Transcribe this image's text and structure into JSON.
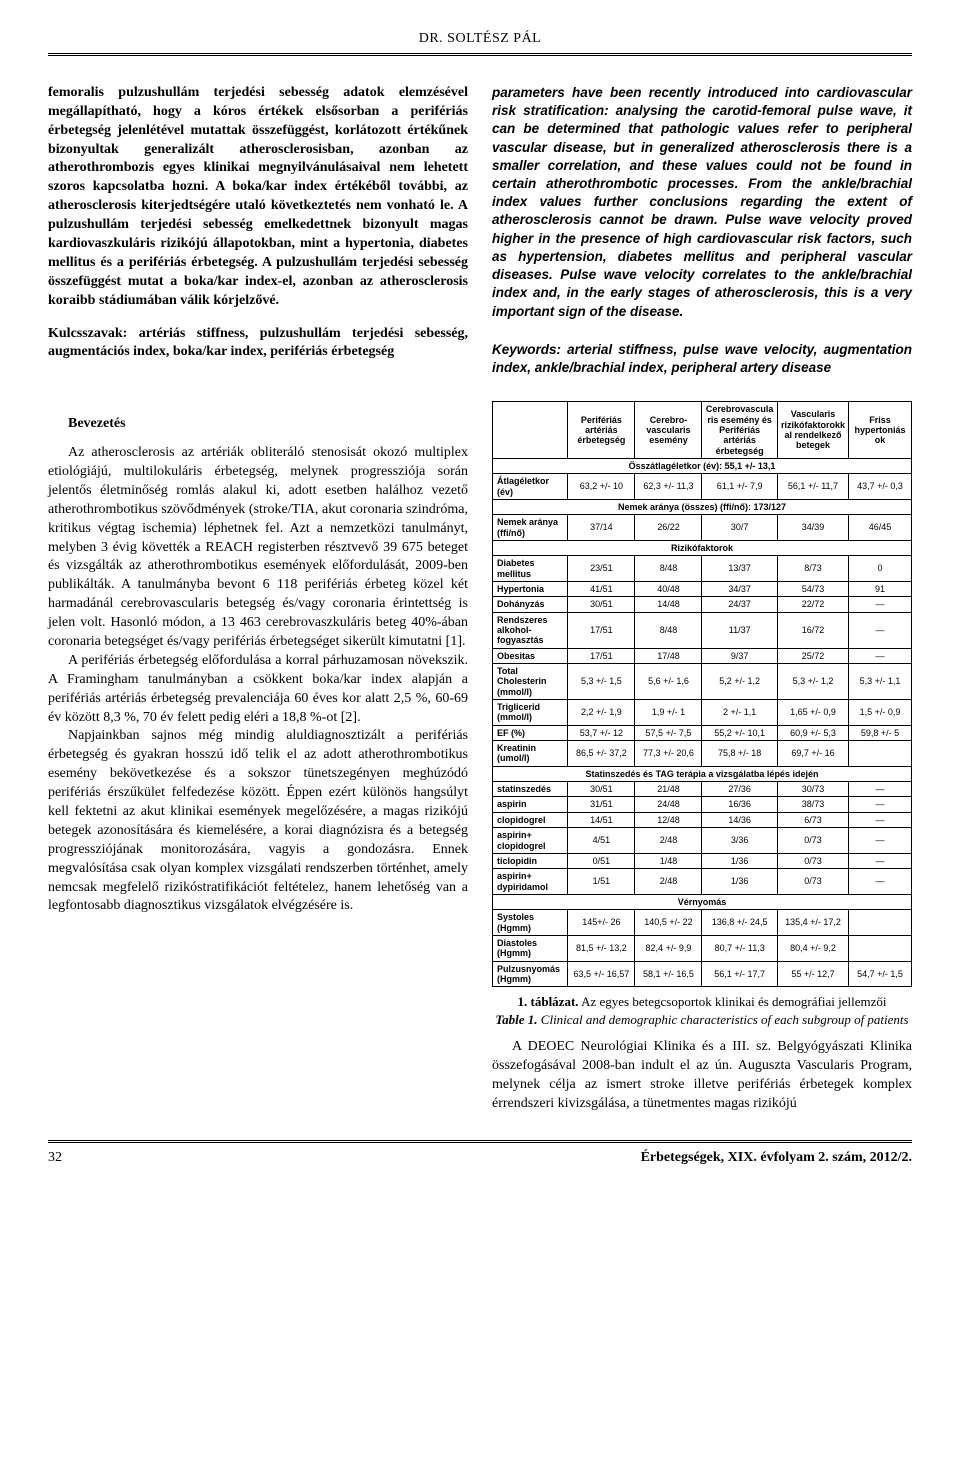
{
  "header": {
    "author": "DR. SOLTÉSZ PÁL"
  },
  "abstract": {
    "hu": "femoralis pulzushullám terjedési sebesség adatok elemzésével megállapítható, hogy a kóros értékek elsősorban a perifériás érbetegség jelenlétével mutattak összefüggést, korlátozott értékűnek bizonyultak generalizált atherosclerosisban, azonban az atherothrombozis egyes klinikai megnyilvánulásaival nem lehetett szoros kapcsolatba hozni. A boka/kar index értékéből további, az atherosclerosis kiterjedtségére utaló következtetés nem vonható le. A pulzushullám terjedési sebesség emelkedettnek bizonyult magas kardiovaszkuláris rizikójú állapotokban, mint a hypertonia, diabetes mellitus és a perifériás érbetegség. A pulzushullám terjedési sebesség összefüggést mutat a boka/kar index-el, azonban az atherosclerosis koraibb stádiumában válik kórjelzővé.",
    "kw_hu": "Kulcsszavak: artériás stiffness, pulzushullám terjedési sebesség, augmentációs index, boka/kar index, perifériás érbetegség",
    "en": "parameters have been recently introduced into cardiovascular risk stratification: analysing the carotid-femoral pulse wave, it can be determined that pathologic values refer to peripheral vascular disease, but in generalized atherosclerosis there is a smaller correlation, and these values could not be found in certain atherothrombotic processes. From the ankle/brachial index values further conclusions regarding the extent of atherosclerosis cannot be drawn. Pulse wave velocity proved higher in the presence of high cardiovascular risk factors, such as hypertension, diabetes mellitus and peripheral vascular diseases. Pulse wave velocity correlates to the ankle/brachial index and, in the early stages of atherosclerosis, this is a very important sign of the disease.",
    "kw_en": "Keywords: arterial stiffness, pulse wave velocity, augmentation index, ankle/brachial index, peripheral artery disease"
  },
  "section": {
    "title": "Bevezetés"
  },
  "body": {
    "p1": "Az atherosclerosis az artériák obliteráló stenosisát okozó multiplex etiológiájú, multilokuláris érbetegség, melynek progressziója során jelentős életminőség romlás alakul ki, adott esetben halálhoz vezető atherothrombotikus szövődmények (stroke/TIA, akut coronaria szindróma, kritikus végtag ischemia) léphetnek fel. Azt a nemzetközi tanulmányt, melyben 3 évig követték a REACH registerben résztvevő 39 675 beteget és vizsgálták az atherothrombotikus események előfordulását, 2009-ben publikálták. A tanulmányba bevont 6 118 perifériás érbeteg közel két harmadánál cerebrovascularis betegség és/vagy coronaria érintettség is jelen volt. Hasonló módon, a 13 463 cerebrovaszkuláris beteg 40%-ában coronaria betegséget és/vagy perifériás érbetegséget sikerült kimutatni [1].",
    "p2": "A perifériás érbetegség előfordulása a korral párhuzamosan növekszik. A Framingham tanulmányban a csökkent boka/kar index alapján a perifériás artériás érbetegség prevalenciája 60 éves kor alatt 2,5 %, 60-69 év között 8,3 %, 70 év felett pedig eléri a 18,8 %-ot [2].",
    "p3": "Napjainkban sajnos még mindig aluldiagnosztizált a perifériás érbetegség és gyakran hosszú idő telik el az adott atherothrombotikus esemény bekövetkezése és a sokszor tünetszegényen meghúzódó perifériás érszűkület felfedezése között. Éppen ezért különös hangsúlyt kell fektetni az akut klinikai események megelőzésére, a magas rizikójú betegek azonosítására és kiemelésére, a korai diagnózisra és a betegség progressziójának monitorozására, vagyis a gondozásra. Ennek megvalósítása csak olyan komplex vizsgálati rendszerben történhet, amely nemcsak megfelelő rizikóstratifikációt feltételez, hanem lehetőség van a legfontosabb diagnosztikus vizsgálatok elvégzésére is."
  },
  "table": {
    "headers": [
      "",
      "Perifériás artériás érbetegség",
      "Cerebro-vascularis esemény",
      "Cerebrovascularis esemény és Perifériás artériás érbetegség",
      "Vascularis rizikófaktorokkal rendelkező betegek",
      "Friss hypertoniások"
    ],
    "span1": "Összátlagéletkor (év): 55,1 +/- 13,1",
    "rows1": [
      [
        "Átlagéletkor (év)",
        "63,2 +/- 10",
        "62,3 +/- 11,3",
        "61,1 +/- 7,9",
        "56,1 +/- 11,7",
        "43,7 +/- 0,3"
      ]
    ],
    "span2": "Nemek aránya (összes) (ffi/nő): 173/127",
    "rows2": [
      [
        "Nemek aránya (ffi/nő)",
        "37/14",
        "26/22",
        "30/7",
        "34/39",
        "46/45"
      ]
    ],
    "span3": "Rizikófaktorok",
    "rows3": [
      [
        "Diabetes mellitus",
        "23/51",
        "8/48",
        "13/37",
        "8/73",
        "0"
      ],
      [
        "Hypertonia",
        "41/51",
        "40/48",
        "34/37",
        "54/73",
        "91"
      ],
      [
        "Dohányzás",
        "30/51",
        "14/48",
        "24/37",
        "22/72",
        "—"
      ],
      [
        "Rendszeres alkohol-fogyasztás",
        "17/51",
        "8/48",
        "11/37",
        "16/72",
        "—"
      ],
      [
        "Obesitas",
        "17/51",
        "17/48",
        "9/37",
        "25/72",
        "—"
      ],
      [
        "Total Cholesterin (mmol/l)",
        "5,3 +/- 1,5",
        "5,6 +/- 1,6",
        "5,2 +/- 1,2",
        "5,3 +/- 1,2",
        "5,3 +/- 1,1"
      ],
      [
        "Triglicerid (mmol/l)",
        "2,2 +/- 1,9",
        "1,9 +/- 1",
        "2 +/- 1,1",
        "1,65 +/- 0,9",
        "1,5 +/- 0,9"
      ],
      [
        "EF (%)",
        "53,7 +/- 12",
        "57,5 +/- 7,5",
        "55,2 +/- 10,1",
        "60,9 +/- 5,3",
        "59,8 +/- 5"
      ],
      [
        "Kreatinin (umol/l)",
        "86,5 +/- 37,2",
        "77,3 +/- 20,6",
        "75,8 +/- 18",
        "69,7 +/- 16",
        ""
      ]
    ],
    "span4": "Statinszedés és TAG terápia a vizsgálatba lépés idején",
    "rows4": [
      [
        "statinszedés",
        "30/51",
        "21/48",
        "27/36",
        "30/73",
        "—"
      ],
      [
        "aspirin",
        "31/51",
        "24/48",
        "16/36",
        "38/73",
        "—"
      ],
      [
        "clopidogrel",
        "14/51",
        "12/48",
        "14/36",
        "6/73",
        "—"
      ],
      [
        "aspirin+ clopidogrel",
        "4/51",
        "2/48",
        "3/36",
        "0/73",
        "—"
      ],
      [
        "ticlopidin",
        "0/51",
        "1/48",
        "1/36",
        "0/73",
        "—"
      ],
      [
        "aspirin+ dypiridamol",
        "1/51",
        "2/48",
        "1/36",
        "0/73",
        "—"
      ]
    ],
    "span5": "Vérnyomás",
    "rows5": [
      [
        "Systoles (Hgmm)",
        "145+/- 26",
        "140,5 +/- 22",
        "136,8 +/- 24,5",
        "135,4 +/- 17,2",
        ""
      ],
      [
        "Diastoles (Hgmm)",
        "81,5 +/- 13,2",
        "82,4 +/- 9,9",
        "80,7 +/- 11,3",
        "80,4 +/- 9,2",
        ""
      ],
      [
        "Pulzusnyomás (Hgmm)",
        "63,5 +/- 16,57",
        "58,1 +/- 16,5",
        "56,1 +/- 17,7",
        "55 +/- 12,7",
        "54,7 +/- 1,5"
      ]
    ]
  },
  "caption": {
    "hu_bold": "1. táblázat.",
    "hu_rest": " Az egyes betegcsoportok klinikai és demográfiai jellemzői",
    "en_bold": "Table 1.",
    "en_rest": " Clinical and demographic characteristics of each subgroup of patients"
  },
  "body_right": "A DEOEC Neurológiai Klinika és a III. sz. Belgyógyászati Klinika összefogásával 2008-ban indult el az ún. Auguszta Vascularis Program, melynek célja az ismert stroke illetve perifériás érbetegek komplex érrendszeri kivizsgálása, a tünetmentes magas rizikójú",
  "footer": {
    "page": "32",
    "ref": "Érbetegségek, XIX. évfolyam 2. szám, 2012/2."
  }
}
